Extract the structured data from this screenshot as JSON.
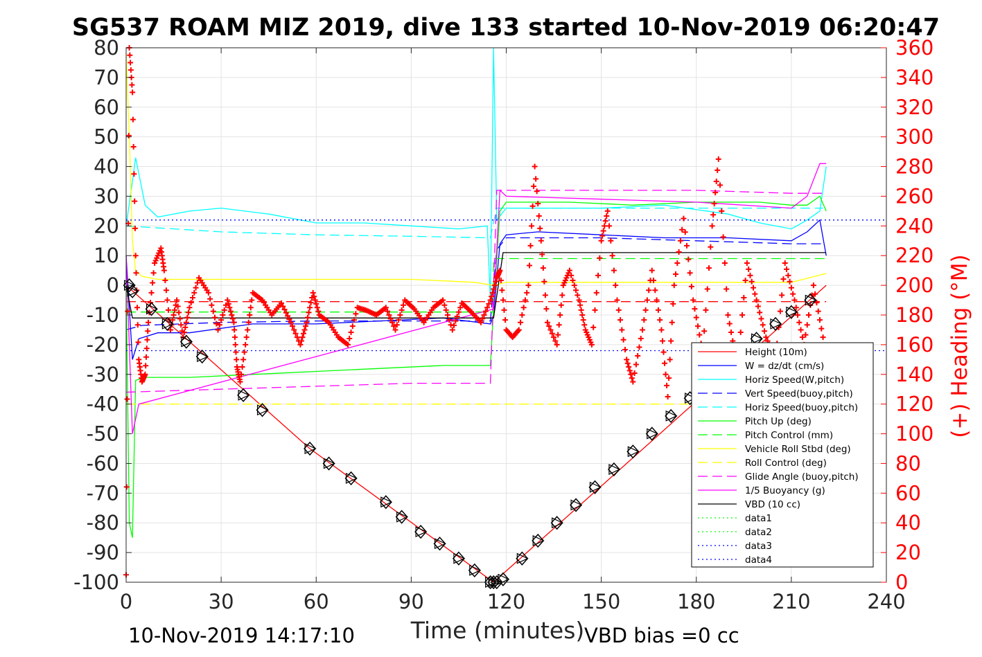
{
  "chart_data": {
    "type": "line",
    "title": "SG537 ROAM MIZ 2019, dive 133 started 10-Nov-2019 06:20:47",
    "xlabel": "Time (minutes)",
    "ylabel_right": "(+) Heading (°M)",
    "footer_left": "10-Nov-2019 14:17:10",
    "footer_right": "VBD bias =0 cc",
    "xlim": [
      0,
      240
    ],
    "ylim": [
      -100,
      80
    ],
    "ylim_right": [
      0,
      360
    ],
    "xticks": [
      0,
      30,
      60,
      90,
      120,
      150,
      180,
      210,
      240
    ],
    "yticks": [
      -100,
      -90,
      -80,
      -70,
      -60,
      -50,
      -40,
      -30,
      -20,
      -10,
      0,
      10,
      20,
      30,
      40,
      50,
      60,
      70,
      80
    ],
    "yticks_right": [
      0,
      20,
      40,
      60,
      80,
      100,
      120,
      140,
      160,
      180,
      200,
      220,
      240,
      260,
      280,
      300,
      320,
      340,
      360
    ],
    "grid": true,
    "legend_position": "bottom-right",
    "series": [
      {
        "name": "Height (10m)",
        "color": "#ff0000",
        "style": "solid",
        "x": [
          0,
          58,
          116,
          221
        ],
        "y": [
          0,
          -55,
          -100,
          0
        ]
      },
      {
        "name": "W = dz/dt (cm/s)",
        "color": "#0000ff",
        "style": "solid",
        "x": [
          0,
          2,
          4,
          10,
          20,
          40,
          60,
          80,
          100,
          115,
          116,
          118,
          120,
          130,
          150,
          170,
          190,
          210,
          215,
          219,
          221
        ],
        "y": [
          10,
          -25,
          -18,
          -16,
          -16,
          -13,
          -13,
          -12,
          -11,
          -13,
          -10,
          14,
          17,
          18,
          17,
          16,
          16,
          15,
          18,
          22,
          10
        ]
      },
      {
        "name": "Horiz Speed(W,pitch)",
        "color": "#00ffff",
        "style": "solid",
        "x": [
          0,
          2,
          3,
          6,
          10,
          20,
          30,
          45,
          60,
          75,
          90,
          105,
          114,
          115,
          116,
          117,
          120,
          130,
          150,
          170,
          190,
          200,
          210,
          215,
          219,
          221
        ],
        "y": [
          20,
          35,
          43,
          27,
          23,
          25,
          26,
          24,
          21,
          21,
          20,
          19,
          20,
          -5,
          80,
          22,
          26,
          26,
          26,
          27,
          24,
          21,
          19,
          22,
          25,
          40
        ]
      },
      {
        "name": "Vert Speed(buoy,pitch)",
        "color": "#0000ff",
        "style": "dash",
        "x": [
          0,
          5,
          30,
          60,
          90,
          115,
          117,
          120,
          150,
          180,
          210,
          220
        ],
        "y": [
          -15,
          -13.5,
          -12.5,
          -12,
          -12,
          -12,
          12,
          16,
          16,
          15,
          14,
          14
        ]
      },
      {
        "name": "Horiz Speed(buoy,pitch)",
        "color": "#00ffff",
        "style": "dash",
        "x": [
          0,
          30,
          60,
          90,
          115,
          117,
          150,
          180,
          210,
          220
        ],
        "y": [
          20,
          18,
          17,
          16.5,
          16,
          26,
          26,
          26,
          26,
          26
        ]
      },
      {
        "name": "Pitch Up (deg)",
        "color": "#00ff00",
        "style": "solid",
        "x": [
          0,
          1,
          2,
          3,
          6,
          20,
          40,
          60,
          80,
          100,
          115,
          116,
          118,
          120,
          140,
          160,
          180,
          200,
          210,
          215,
          219,
          221
        ],
        "y": [
          0,
          -80,
          -85,
          -32,
          -31,
          -31,
          -30,
          -29,
          -28,
          -27,
          -27,
          -8,
          25,
          28,
          28,
          27,
          28,
          28,
          27,
          27,
          30,
          25
        ]
      },
      {
        "name": "Pitch Control (mm)",
        "color": "#00ff00",
        "style": "dash",
        "x": [
          0,
          116,
          116,
          221
        ],
        "y": [
          -9,
          -9,
          9,
          9
        ]
      },
      {
        "name": "Vehicle Roll Stbd (deg)",
        "color": "#ffff00",
        "style": "solid",
        "x": [
          0,
          1,
          2,
          3,
          5,
          10,
          20,
          30,
          60,
          90,
          110,
          116,
          120,
          150,
          180,
          210,
          221
        ],
        "y": [
          78,
          50,
          15,
          5,
          3,
          2,
          2,
          2,
          2,
          2,
          1,
          0,
          1,
          1,
          1,
          1,
          4
        ]
      },
      {
        "name": "Roll Control (deg)",
        "color": "#ffff00",
        "style": "dash",
        "x": [
          0,
          221
        ],
        "y": [
          -40,
          -40
        ]
      },
      {
        "name": "Glide Angle (buoy,pitch)",
        "color": "#ff00ff",
        "style": "dash",
        "x": [
          0,
          30,
          60,
          90,
          115,
          117,
          150,
          180,
          210,
          220
        ],
        "y": [
          -36,
          -35,
          -34,
          -33,
          -33,
          32,
          32,
          32,
          31,
          31
        ]
      },
      {
        "name": "1/5 Buoyancy (g)",
        "color": "#ff00ff",
        "style": "solid",
        "x": [
          0,
          2,
          4,
          116,
          118,
          120,
          150,
          180,
          210,
          215,
          219,
          221
        ],
        "y": [
          10,
          -50,
          -40,
          -8,
          32,
          30,
          29,
          28,
          26,
          30,
          41,
          41
        ]
      },
      {
        "name": "VBD (10 cc)",
        "color": "#000000",
        "style": "solid",
        "x": [
          0,
          2,
          116,
          119,
          221
        ],
        "y": [
          0,
          -11,
          -11,
          11,
          11
        ]
      },
      {
        "name": "data1",
        "color": "#00ff00",
        "style": "dot",
        "x": [],
        "y": []
      },
      {
        "name": "data2",
        "color": "#00ff00",
        "style": "dot",
        "x": [],
        "y": []
      },
      {
        "name": "data3",
        "color": "#0000ff",
        "style": "dot",
        "x": [
          0,
          240
        ],
        "y": [
          22,
          22
        ]
      },
      {
        "name": "data4",
        "color": "#0000ff",
        "style": "dot",
        "x": [
          0,
          240
        ],
        "y": [
          -22,
          -22
        ]
      }
    ],
    "reference_lines": [
      {
        "color": "#ff0000",
        "style": "dash",
        "x": [
          0,
          221
        ],
        "y": [
          -5.5,
          -5.5
        ]
      }
    ],
    "heading_points": {
      "color": "#ff0000",
      "marker": "+",
      "x": [
        0,
        1,
        2,
        3,
        4,
        5,
        6,
        7,
        9,
        11,
        12,
        14,
        16,
        18,
        20,
        23,
        26,
        29,
        32,
        34,
        35,
        36,
        38,
        40,
        43,
        46,
        49,
        52,
        55,
        57,
        59,
        61,
        64,
        67,
        70,
        73,
        76,
        79,
        82,
        85,
        88,
        91,
        94,
        97,
        100,
        103,
        106,
        109,
        112,
        115,
        117,
        118,
        120,
        122,
        124,
        127,
        129,
        131,
        133,
        136,
        138,
        140,
        143,
        145,
        147,
        150,
        152,
        155,
        158,
        160,
        163,
        166,
        169,
        171,
        173,
        176,
        179,
        182,
        185,
        187,
        190,
        193,
        196,
        199,
        202,
        205,
        208,
        211,
        214,
        217,
        220
      ],
      "y": [
        5,
        360,
        330,
        220,
        150,
        135,
        140,
        175,
        215,
        225,
        210,
        170,
        190,
        165,
        185,
        205,
        195,
        170,
        190,
        175,
        145,
        135,
        165,
        195,
        190,
        180,
        188,
        175,
        160,
        175,
        195,
        180,
        175,
        165,
        160,
        185,
        183,
        180,
        185,
        170,
        190,
        184,
        175,
        185,
        190,
        170,
        188,
        182,
        175,
        190,
        205,
        210,
        170,
        165,
        170,
        200,
        280,
        230,
        175,
        160,
        200,
        210,
        190,
        170,
        160,
        230,
        250,
        190,
        150,
        135,
        170,
        210,
        170,
        125,
        200,
        245,
        190,
        155,
        240,
        285,
        180,
        145,
        215,
        190,
        165,
        150,
        215,
        190,
        160,
        200,
        165
      ]
    },
    "dive_markers": {
      "color": "#000000",
      "marker": "diamond-triangle",
      "x": [
        1,
        2,
        8,
        13,
        19,
        24,
        37,
        43,
        58,
        64,
        71,
        82,
        87,
        93,
        99,
        105,
        110,
        115,
        116,
        117,
        119,
        125,
        130,
        136,
        142,
        148,
        154,
        160,
        166,
        172,
        178,
        185,
        199,
        205,
        210,
        216
      ],
      "y": [
        0,
        -2,
        -8,
        -13,
        -19,
        -24,
        -37,
        -42,
        -55,
        -60,
        -65,
        -73,
        -78,
        -83,
        -87,
        -92,
        -96,
        -100,
        -100,
        -100,
        -99,
        -92,
        -86,
        -80,
        -74,
        -68,
        -62,
        -56,
        -50,
        -44,
        -38,
        -33,
        -18,
        -13,
        -9,
        -5
      ]
    }
  }
}
